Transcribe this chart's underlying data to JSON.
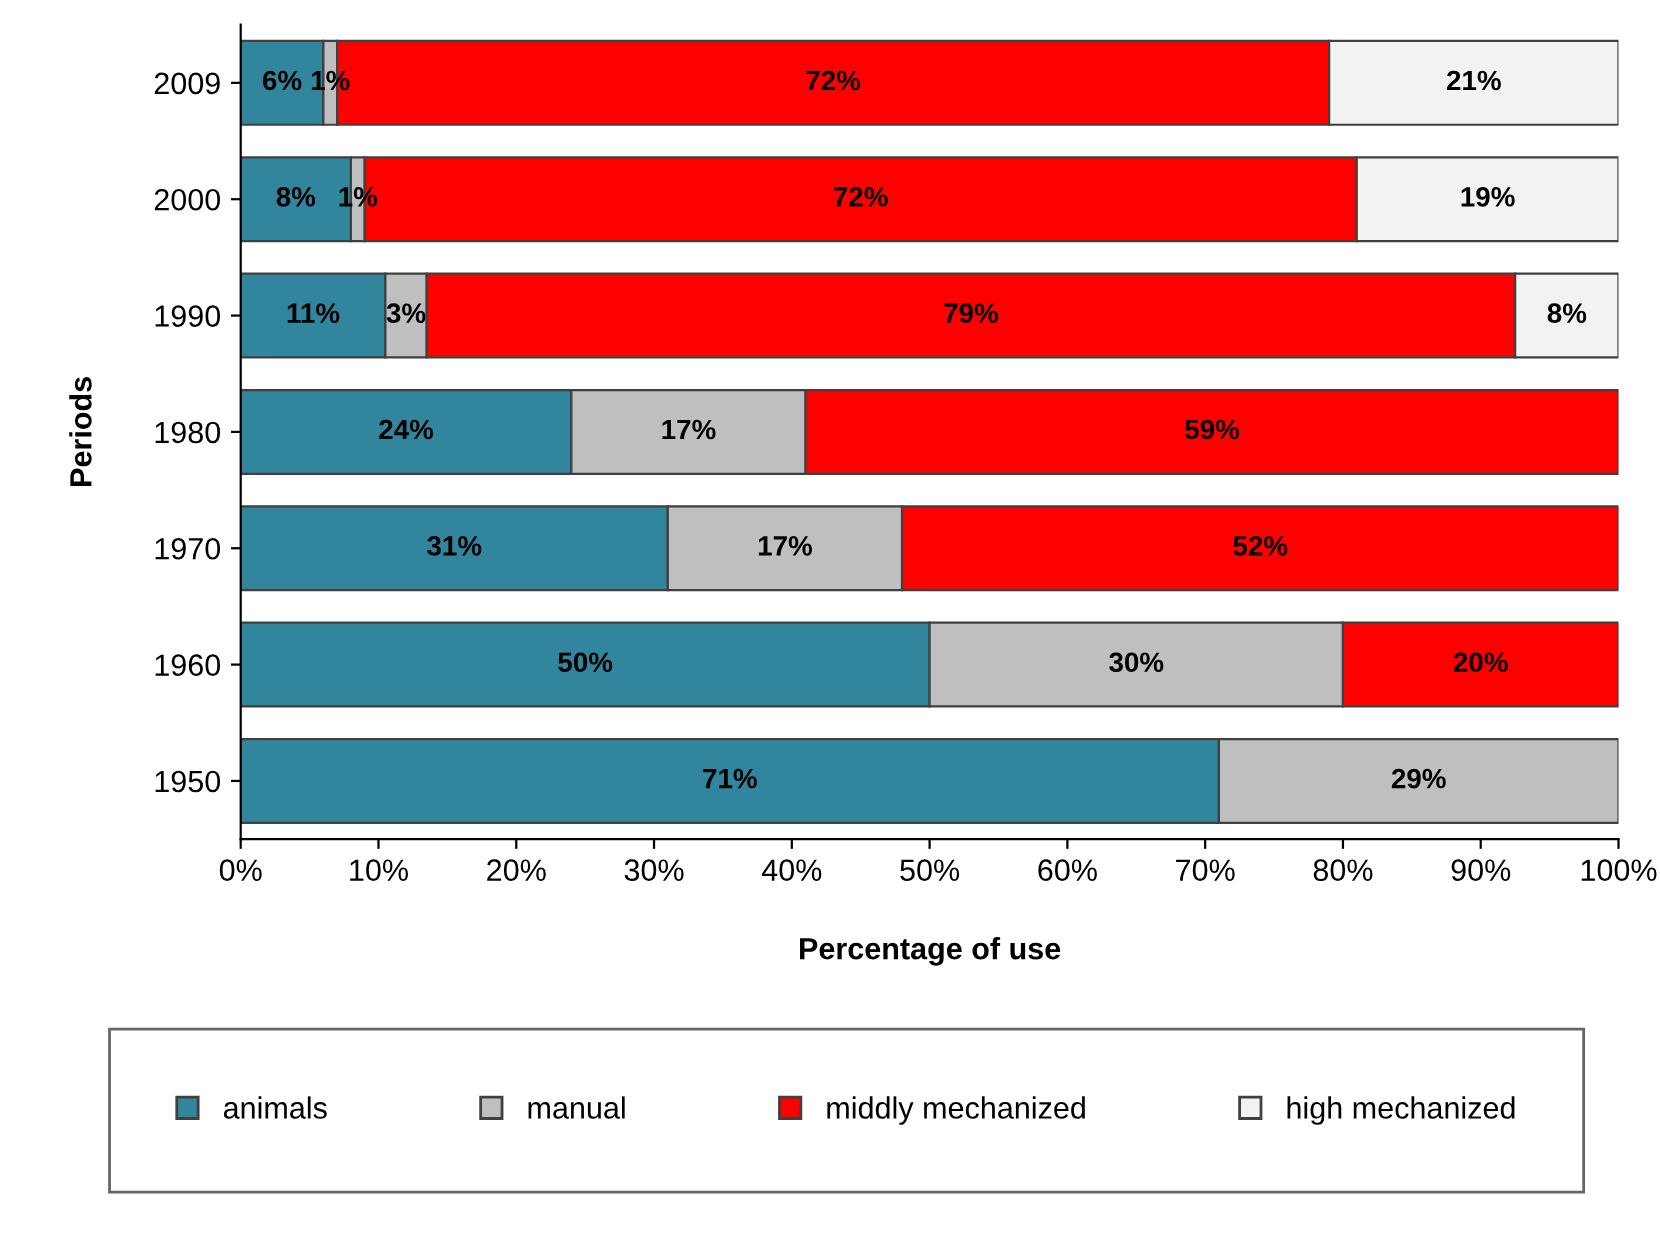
{
  "chart_data": {
    "type": "bar",
    "orientation": "horizontal",
    "stacked": true,
    "categories": [
      "2009",
      "2000",
      "1990",
      "1980",
      "1970",
      "1960",
      "1950"
    ],
    "xlabel": "Percentage of use",
    "ylabel": "Periods",
    "xlim": [
      0,
      100
    ],
    "xticks": [
      {
        "value": 0,
        "label": "0%"
      },
      {
        "value": 10,
        "label": "10%"
      },
      {
        "value": 20,
        "label": "20%"
      },
      {
        "value": 30,
        "label": "30%"
      },
      {
        "value": 40,
        "label": "40%"
      },
      {
        "value": 50,
        "label": "50%"
      },
      {
        "value": 60,
        "label": "60%"
      },
      {
        "value": 70,
        "label": "70%"
      },
      {
        "value": 80,
        "label": "80%"
      },
      {
        "value": 90,
        "label": "90%"
      },
      {
        "value": 100,
        "label": "100%"
      }
    ],
    "grid": false,
    "legend": "bottom",
    "series": [
      {
        "name": "animals",
        "color": "#31859c",
        "values": [
          6,
          8,
          10.5,
          24,
          31,
          50,
          71
        ],
        "value_labels": [
          "6%",
          "8%",
          "11%",
          "24%",
          "31%",
          "50%",
          "71%"
        ]
      },
      {
        "name": "manual",
        "color": "#bfbfbf",
        "values": [
          1,
          1,
          3,
          17,
          17,
          30,
          29
        ],
        "value_labels": [
          "1%",
          "1%",
          "3%",
          "17%",
          "17%",
          "30%",
          "29%"
        ]
      },
      {
        "name": "middly mechanized",
        "color": "#ff0000",
        "values": [
          72,
          72,
          79,
          59,
          52,
          20,
          null
        ],
        "value_labels": [
          "72%",
          "72%",
          "79%",
          "59%",
          "52%",
          "20%",
          null
        ]
      },
      {
        "name": "high mechanized",
        "color": "#f2f2f2",
        "values": [
          21,
          19,
          7.5,
          null,
          null,
          null,
          null
        ],
        "value_labels": [
          "21%",
          "19%",
          "8%",
          null,
          null,
          null,
          null
        ]
      }
    ]
  }
}
